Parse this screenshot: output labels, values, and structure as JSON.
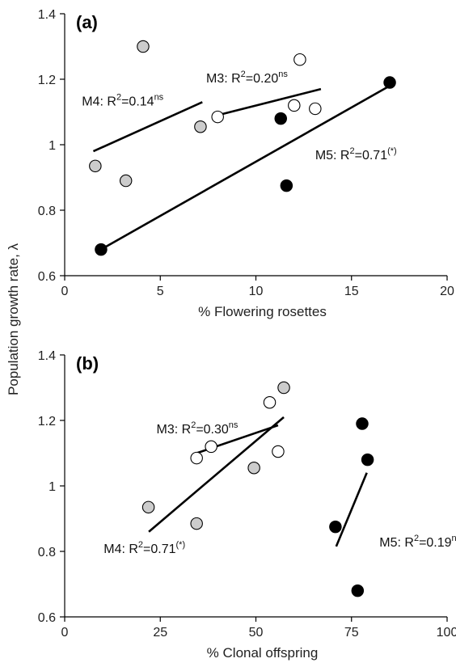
{
  "ylabel": "Population growth rate, λ",
  "colors": {
    "M3": "#ffffff",
    "M4": "#cccccc",
    "M5": "#000000",
    "stroke": "#000000"
  },
  "chart_data": [
    {
      "type": "scatter",
      "panel_label": "(a)",
      "xlabel": "% Flowering rosettes",
      "xlim": [
        0,
        20
      ],
      "ylim": [
        0.6,
        1.4
      ],
      "xticks": [
        0,
        5,
        10,
        15,
        20
      ],
      "xtick_labels": [
        "0",
        "5",
        "10",
        "15",
        "20"
      ],
      "yticks": [
        0.6,
        0.8,
        1.0,
        1.2,
        1.4
      ],
      "ytick_labels": [
        "0.6",
        "0.8",
        "1",
        "1.2",
        "1.4"
      ],
      "grid": false,
      "series": [
        {
          "name": "M3",
          "marker": "open circle",
          "points": [
            [
              8.0,
              1.085
            ],
            [
              12.0,
              1.12
            ],
            [
              12.3,
              1.26
            ],
            [
              13.1,
              1.11
            ]
          ],
          "fit": [
            [
              8.0,
              1.09
            ],
            [
              13.4,
              1.17
            ]
          ]
        },
        {
          "name": "M4",
          "marker": "grey circle",
          "points": [
            [
              1.6,
              0.935
            ],
            [
              3.2,
              0.89
            ],
            [
              4.1,
              1.3
            ],
            [
              7.1,
              1.055
            ]
          ],
          "fit": [
            [
              1.5,
              0.98
            ],
            [
              7.2,
              1.13
            ]
          ]
        },
        {
          "name": "M5",
          "marker": "filled circle",
          "points": [
            [
              1.9,
              0.68
            ],
            [
              11.3,
              1.08
            ],
            [
              11.6,
              0.875
            ],
            [
              17.0,
              1.19
            ]
          ],
          "fit": [
            [
              1.9,
              0.68
            ],
            [
              17.0,
              1.18
            ]
          ]
        }
      ],
      "annotations": [
        {
          "series": "M4",
          "text": "M4: R",
          "sup1": "2",
          "rest": "=0.14",
          "sup2": "ns",
          "x": 0.9,
          "y": 1.12
        },
        {
          "series": "M3",
          "text": "M3: R",
          "sup1": "2",
          "rest": "=0.20",
          "sup2": "ns",
          "x": 7.4,
          "y": 1.19
        },
        {
          "series": "M5",
          "text": "M5: R",
          "sup1": "2",
          "rest": "=0.71",
          "sup2": "(*)",
          "x": 13.1,
          "y": 0.955
        }
      ]
    },
    {
      "type": "scatter",
      "panel_label": "(b)",
      "xlabel": "% Clonal offspring",
      "xlim": [
        0,
        100
      ],
      "ylim": [
        0.6,
        1.4
      ],
      "xticks": [
        0,
        25,
        50,
        75,
        100
      ],
      "xtick_labels": [
        "0",
        "25",
        "50",
        "75",
        "100"
      ],
      "yticks": [
        0.6,
        0.8,
        1.0,
        1.2,
        1.4
      ],
      "ytick_labels": [
        "0.6",
        "0.8",
        "1",
        "1.2",
        "1.4"
      ],
      "grid": false,
      "series": [
        {
          "name": "M3",
          "marker": "open circle",
          "points": [
            [
              34.5,
              1.085
            ],
            [
              38.3,
              1.12
            ],
            [
              53.6,
              1.255
            ],
            [
              55.8,
              1.105
            ]
          ],
          "fit": [
            [
              34.5,
              1.1
            ],
            [
              55.8,
              1.185
            ]
          ]
        },
        {
          "name": "M4",
          "marker": "grey circle",
          "points": [
            [
              21.9,
              0.935
            ],
            [
              34.5,
              0.885
            ],
            [
              49.5,
              1.055
            ],
            [
              57.3,
              1.3
            ]
          ],
          "fit": [
            [
              22.0,
              0.86
            ],
            [
              57.3,
              1.21
            ]
          ]
        },
        {
          "name": "M5",
          "marker": "filled circle",
          "points": [
            [
              70.8,
              0.875
            ],
            [
              76.6,
              0.68
            ],
            [
              77.8,
              1.19
            ],
            [
              79.2,
              1.08
            ]
          ],
          "fit": [
            [
              71.0,
              0.815
            ],
            [
              79.0,
              1.04
            ]
          ]
        }
      ],
      "annotations": [
        {
          "series": "M3",
          "text": "M3: R",
          "sup1": "2",
          "rest": "=0.30",
          "sup2": "ns",
          "x": 24.0,
          "y": 1.16
        },
        {
          "series": "M4",
          "text": "M4: R",
          "sup1": "2",
          "rest": "=0.71",
          "sup2": "(*)",
          "x": 10.2,
          "y": 0.795
        },
        {
          "series": "M5",
          "text": "M5: R",
          "sup1": "2",
          "rest": "=0.19",
          "sup2": "ns",
          "x": 82.3,
          "y": 0.815
        }
      ]
    }
  ]
}
